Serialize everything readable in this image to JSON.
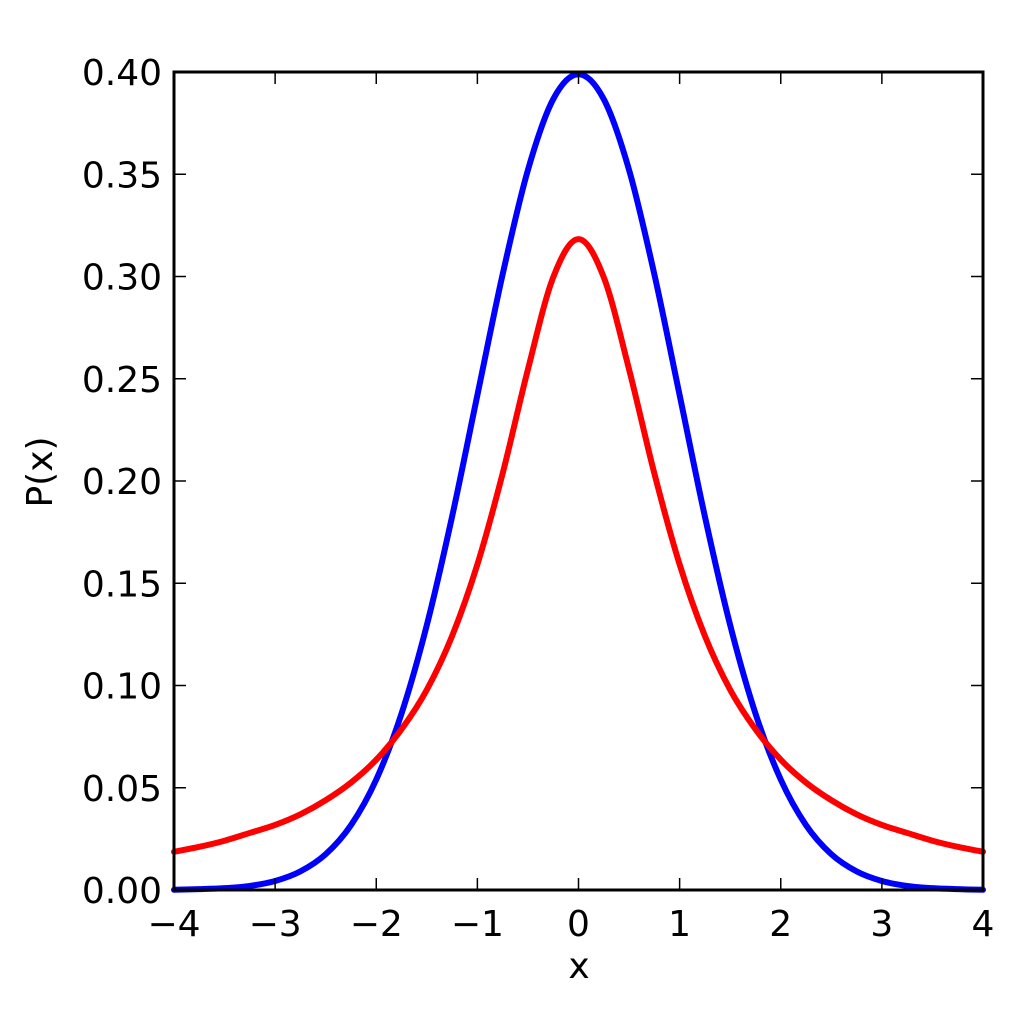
{
  "chart_data": {
    "type": "line",
    "title": "",
    "xlabel": "x",
    "ylabel": "P(x)",
    "xlim": [
      -4,
      4
    ],
    "ylim": [
      0,
      0.4
    ],
    "x_ticks": [
      -4,
      -3,
      -2,
      -1,
      0,
      1,
      2,
      3,
      4
    ],
    "x_tick_labels": [
      "−4",
      "−3",
      "−2",
      "−1",
      "0",
      "1",
      "2",
      "3",
      "4"
    ],
    "y_ticks": [
      0,
      0.05,
      0.1,
      0.15,
      0.2,
      0.25,
      0.3,
      0.35,
      0.4
    ],
    "y_tick_labels": [
      "0.00",
      "0.05",
      "0.10",
      "0.15",
      "0.20",
      "0.25",
      "0.30",
      "0.35",
      "0.40"
    ],
    "grid": false,
    "legend": "none",
    "series": [
      {
        "color": "#0000ff",
        "x": [
          -4.0,
          -3.75,
          -3.5,
          -3.25,
          -3.0,
          -2.75,
          -2.5,
          -2.25,
          -2.0,
          -1.75,
          -1.5,
          -1.25,
          -1.0,
          -0.75,
          -0.5,
          -0.25,
          0.0,
          0.25,
          0.5,
          0.75,
          1.0,
          1.25,
          1.5,
          1.75,
          2.0,
          2.25,
          2.5,
          2.75,
          3.0,
          3.25,
          3.5,
          3.75,
          4.0
        ],
        "y": [
          0.0001,
          0.0004,
          0.0009,
          0.002,
          0.0044,
          0.0091,
          0.0175,
          0.0317,
          0.054,
          0.0863,
          0.1295,
          0.1826,
          0.242,
          0.3011,
          0.3521,
          0.3867,
          0.3989,
          0.3867,
          0.3521,
          0.3011,
          0.242,
          0.1826,
          0.1295,
          0.0863,
          0.054,
          0.0317,
          0.0175,
          0.0091,
          0.0044,
          0.002,
          0.0009,
          0.0004,
          0.0001
        ]
      },
      {
        "color": "#ff0000",
        "x": [
          -4.0,
          -3.75,
          -3.5,
          -3.25,
          -3.0,
          -2.75,
          -2.5,
          -2.25,
          -2.0,
          -1.75,
          -1.5,
          -1.25,
          -1.0,
          -0.75,
          -0.5,
          -0.25,
          0.0,
          0.25,
          0.5,
          0.75,
          1.0,
          1.25,
          1.5,
          1.75,
          2.0,
          2.25,
          2.5,
          2.75,
          3.0,
          3.25,
          3.5,
          3.75,
          4.0
        ],
        "y": [
          0.0187,
          0.0211,
          0.0241,
          0.0279,
          0.0318,
          0.037,
          0.0439,
          0.0525,
          0.0637,
          0.0786,
          0.0979,
          0.1242,
          0.1592,
          0.2037,
          0.2546,
          0.2996,
          0.3183,
          0.2996,
          0.2546,
          0.2037,
          0.1592,
          0.1242,
          0.0979,
          0.0786,
          0.0637,
          0.0525,
          0.0439,
          0.037,
          0.0318,
          0.0279,
          0.0241,
          0.0211,
          0.0187
        ]
      }
    ]
  }
}
